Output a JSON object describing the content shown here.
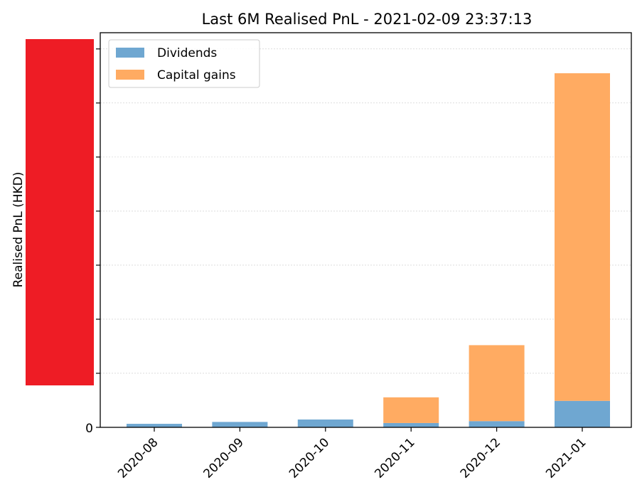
{
  "chart_data": {
    "type": "bar",
    "stacked": true,
    "title": "Last 6M Realised PnL - 2021-02-09 23:37:13",
    "xlabel": "",
    "ylabel": "Realised PnL (HKD)",
    "ylim": [
      0,
      7300
    ],
    "y_ticks_visible": [
      "0"
    ],
    "grid": "horizontal-dashed",
    "legend_position": "top-left",
    "categories": [
      "2020-08",
      "2020-09",
      "2020-10",
      "2020-11",
      "2020-12",
      "2021-01"
    ],
    "series": [
      {
        "name": "Dividends",
        "color": "#6fa7d1",
        "values": [
          65,
          100,
          145,
          80,
          115,
          490
        ]
      },
      {
        "name": "Capital gains",
        "color": "#ffab62",
        "values": [
          0,
          0,
          0,
          475,
          1405,
          6060
        ]
      }
    ],
    "redaction_color": "#ee1c25"
  }
}
